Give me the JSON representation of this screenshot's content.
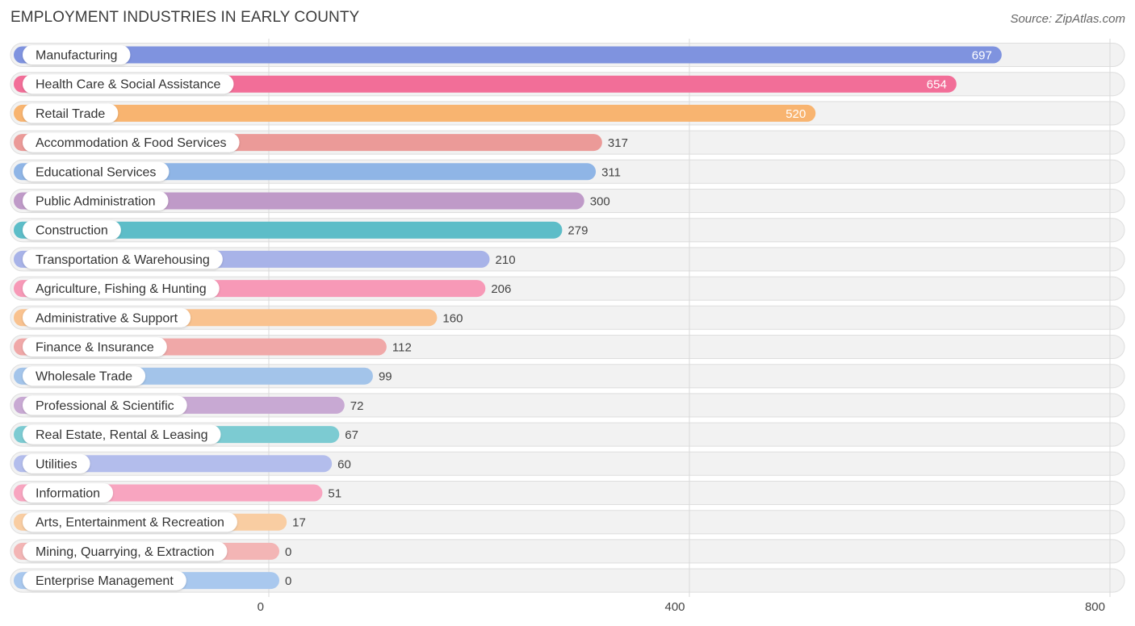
{
  "chart_data": {
    "type": "bar",
    "orientation": "horizontal",
    "title": "EMPLOYMENT INDUSTRIES IN EARLY COUNTY",
    "source": "Source: ZipAtlas.com",
    "xlim": [
      0,
      800
    ],
    "xticks": [
      0,
      400,
      800
    ],
    "categories": [
      "Manufacturing",
      "Health Care & Social Assistance",
      "Retail Trade",
      "Accommodation & Food Services",
      "Educational Services",
      "Public Administration",
      "Construction",
      "Transportation & Warehousing",
      "Agriculture, Fishing & Hunting",
      "Administrative & Support",
      "Finance & Insurance",
      "Wholesale Trade",
      "Professional & Scientific",
      "Real Estate, Rental & Leasing",
      "Utilities",
      "Information",
      "Arts, Entertainment & Recreation",
      "Mining, Quarrying, & Extraction",
      "Enterprise Management"
    ],
    "values": [
      697,
      654,
      520,
      317,
      311,
      300,
      279,
      210,
      206,
      160,
      112,
      99,
      72,
      67,
      60,
      51,
      17,
      0,
      0
    ],
    "colors": [
      "#7f93df",
      "#f26e98",
      "#f8b470",
      "#eb9a98",
      "#8fb5e6",
      "#bf9ac8",
      "#5dbdc8",
      "#a8b3e8",
      "#f799b7",
      "#f9c28f",
      "#f0a8a8",
      "#a3c4ea",
      "#c8a9d3",
      "#7ccbd2",
      "#b3bdec",
      "#f8a5c0",
      "#f9cda2",
      "#f3b5b5",
      "#a9c8ee"
    ]
  }
}
